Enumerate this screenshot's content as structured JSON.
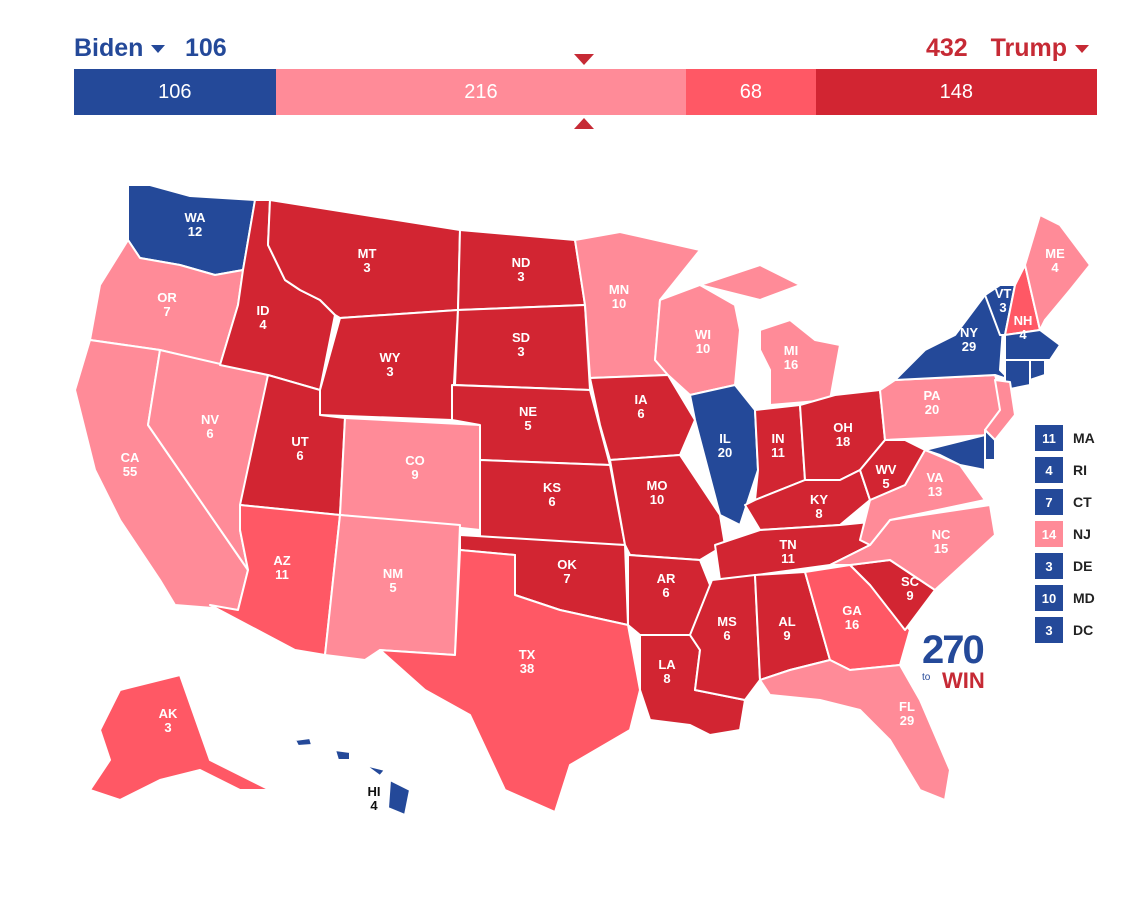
{
  "header": {
    "left_candidate": "Biden",
    "left_total": "106",
    "right_candidate": "Trump",
    "right_total": "432"
  },
  "bar": {
    "segments": [
      {
        "label": "106",
        "value": 106,
        "color": "#244999"
      },
      {
        "label": "216",
        "value": 216,
        "color": "#ff8b98"
      },
      {
        "label": "68",
        "value": 68,
        "color": "#ff5865"
      },
      {
        "label": "148",
        "value": 148,
        "color": "#d22532"
      }
    ]
  },
  "colors": {
    "safe_dem": "#244999",
    "likely_rep": "#ff8b98",
    "leans_rep": "#ff5865",
    "safe_rep": "#d22532"
  },
  "states": [
    {
      "abbr": "WA",
      "ev": "12",
      "rating": "safe_dem"
    },
    {
      "abbr": "OR",
      "ev": "7",
      "rating": "likely_rep"
    },
    {
      "abbr": "CA",
      "ev": "55",
      "rating": "likely_rep"
    },
    {
      "abbr": "ID",
      "ev": "4",
      "rating": "safe_rep"
    },
    {
      "abbr": "NV",
      "ev": "6",
      "rating": "likely_rep"
    },
    {
      "abbr": "MT",
      "ev": "3",
      "rating": "safe_rep"
    },
    {
      "abbr": "WY",
      "ev": "3",
      "rating": "safe_rep"
    },
    {
      "abbr": "UT",
      "ev": "6",
      "rating": "safe_rep"
    },
    {
      "abbr": "AZ",
      "ev": "11",
      "rating": "leans_rep"
    },
    {
      "abbr": "CO",
      "ev": "9",
      "rating": "likely_rep"
    },
    {
      "abbr": "NM",
      "ev": "5",
      "rating": "likely_rep"
    },
    {
      "abbr": "ND",
      "ev": "3",
      "rating": "safe_rep"
    },
    {
      "abbr": "SD",
      "ev": "3",
      "rating": "safe_rep"
    },
    {
      "abbr": "NE",
      "ev": "5",
      "rating": "safe_rep"
    },
    {
      "abbr": "KS",
      "ev": "6",
      "rating": "safe_rep"
    },
    {
      "abbr": "OK",
      "ev": "7",
      "rating": "safe_rep"
    },
    {
      "abbr": "TX",
      "ev": "38",
      "rating": "leans_rep"
    },
    {
      "abbr": "MN",
      "ev": "10",
      "rating": "likely_rep"
    },
    {
      "abbr": "IA",
      "ev": "6",
      "rating": "safe_rep"
    },
    {
      "abbr": "MO",
      "ev": "10",
      "rating": "safe_rep"
    },
    {
      "abbr": "AR",
      "ev": "6",
      "rating": "safe_rep"
    },
    {
      "abbr": "LA",
      "ev": "8",
      "rating": "safe_rep"
    },
    {
      "abbr": "WI",
      "ev": "10",
      "rating": "likely_rep"
    },
    {
      "abbr": "IL",
      "ev": "20",
      "rating": "safe_dem"
    },
    {
      "abbr": "MI",
      "ev": "16",
      "rating": "likely_rep"
    },
    {
      "abbr": "IN",
      "ev": "11",
      "rating": "safe_rep"
    },
    {
      "abbr": "OH",
      "ev": "18",
      "rating": "safe_rep"
    },
    {
      "abbr": "KY",
      "ev": "8",
      "rating": "safe_rep"
    },
    {
      "abbr": "TN",
      "ev": "11",
      "rating": "safe_rep"
    },
    {
      "abbr": "MS",
      "ev": "6",
      "rating": "safe_rep"
    },
    {
      "abbr": "AL",
      "ev": "9",
      "rating": "safe_rep"
    },
    {
      "abbr": "GA",
      "ev": "16",
      "rating": "leans_rep"
    },
    {
      "abbr": "FL",
      "ev": "29",
      "rating": "likely_rep"
    },
    {
      "abbr": "SC",
      "ev": "9",
      "rating": "safe_rep"
    },
    {
      "abbr": "NC",
      "ev": "15",
      "rating": "likely_rep"
    },
    {
      "abbr": "VA",
      "ev": "13",
      "rating": "likely_rep"
    },
    {
      "abbr": "WV",
      "ev": "5",
      "rating": "safe_rep"
    },
    {
      "abbr": "PA",
      "ev": "20",
      "rating": "likely_rep"
    },
    {
      "abbr": "NY",
      "ev": "29",
      "rating": "safe_dem"
    },
    {
      "abbr": "VT",
      "ev": "3",
      "rating": "safe_dem"
    },
    {
      "abbr": "NH",
      "ev": "4",
      "rating": "leans_rep"
    },
    {
      "abbr": "ME",
      "ev": "4",
      "rating": "likely_rep"
    },
    {
      "abbr": "AK",
      "ev": "3",
      "rating": "leans_rep"
    },
    {
      "abbr": "HI",
      "ev": "4",
      "rating": "safe_dem"
    }
  ],
  "small_states": [
    {
      "abbr": "MA",
      "ev": "11",
      "rating": "safe_dem"
    },
    {
      "abbr": "RI",
      "ev": "4",
      "rating": "safe_dem"
    },
    {
      "abbr": "CT",
      "ev": "7",
      "rating": "safe_dem"
    },
    {
      "abbr": "NJ",
      "ev": "14",
      "rating": "likely_rep"
    },
    {
      "abbr": "DE",
      "ev": "3",
      "rating": "safe_dem"
    },
    {
      "abbr": "MD",
      "ev": "10",
      "rating": "safe_dem"
    },
    {
      "abbr": "DC",
      "ev": "3",
      "rating": "safe_dem"
    }
  ],
  "logo": {
    "number": "270",
    "to": "to",
    "win": "WIN"
  }
}
